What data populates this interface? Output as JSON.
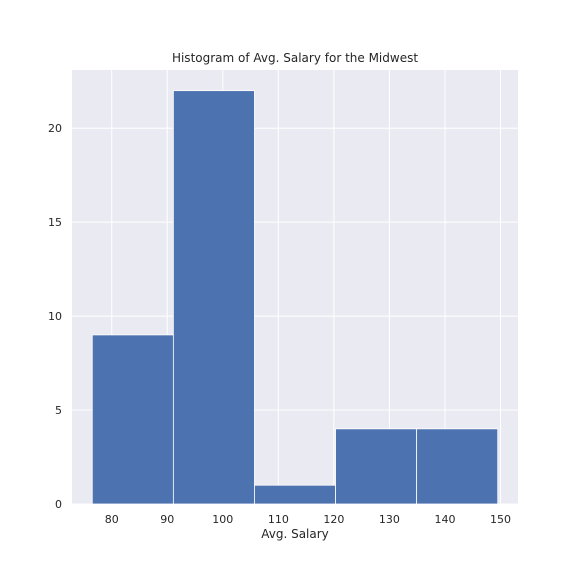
{
  "chart_data": {
    "type": "bar",
    "title": "Histogram of Avg. Salary for the Midwest",
    "xlabel": "Avg. Salary",
    "ylabel": "",
    "bins": [
      {
        "start": 76.5,
        "end": 91.1,
        "count": 9
      },
      {
        "start": 91.1,
        "end": 105.7,
        "count": 22
      },
      {
        "start": 105.7,
        "end": 120.3,
        "count": 1
      },
      {
        "start": 120.3,
        "end": 134.9,
        "count": 4
      },
      {
        "start": 134.9,
        "end": 149.5,
        "count": 4
      }
    ],
    "xticks": [
      80,
      90,
      100,
      110,
      120,
      130,
      140,
      150
    ],
    "xtick_labels": [
      "80",
      "90",
      "100",
      "110",
      "120",
      "130",
      "140",
      "150"
    ],
    "yticks": [
      0,
      5,
      10,
      15,
      20
    ],
    "ytick_labels": [
      "0",
      "5",
      "10",
      "15",
      "20"
    ],
    "xlim": [
      72.85,
      153.15
    ],
    "ylim": [
      0,
      23.1
    ],
    "grid": true,
    "colors": {
      "bar": "#4c72b0",
      "plot_background": "#eaeaf2",
      "grid": "#ffffff",
      "bar_edge": "#ffffff"
    }
  }
}
